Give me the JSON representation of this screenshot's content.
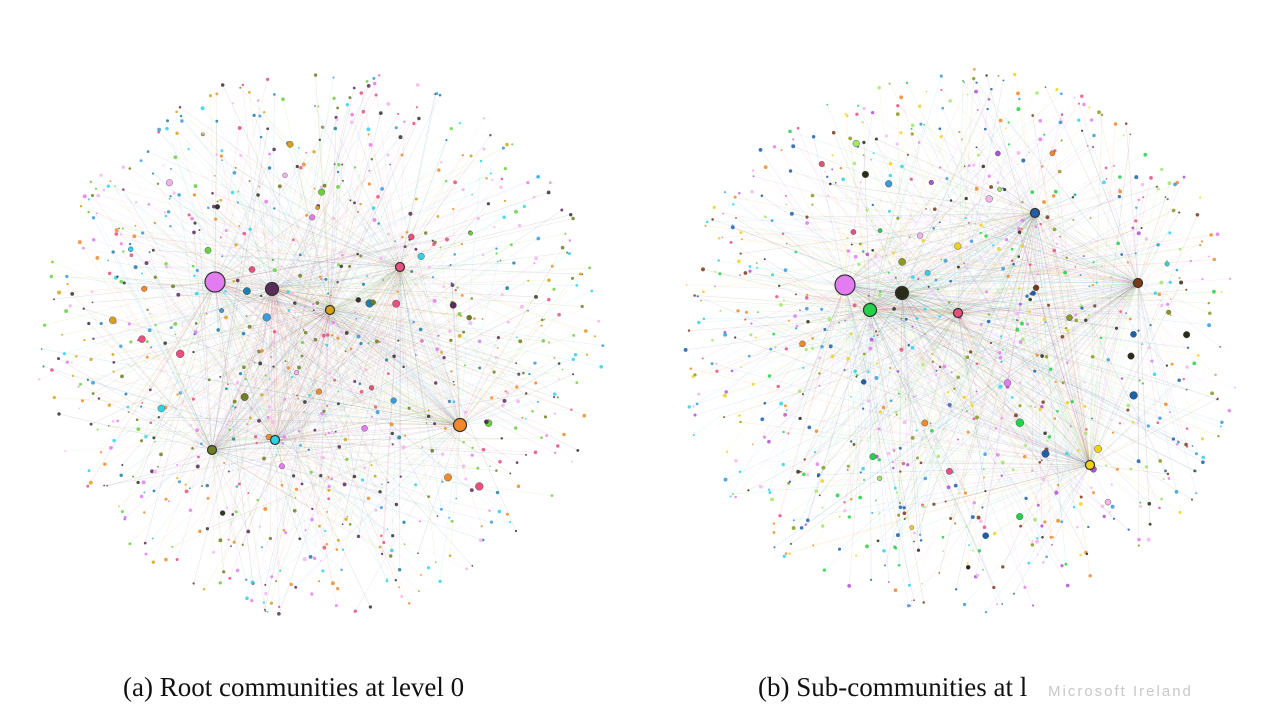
{
  "panels": [
    {
      "id": "a",
      "caption": "(a) Root communities at level 0",
      "seed": 11,
      "palette": [
        "#e27cf0",
        "#2fd3e6",
        "#6ad13c",
        "#f08a2a",
        "#5b2d5a",
        "#d6a21a",
        "#6d7f22",
        "#e94f7f",
        "#3a9bd8",
        "#333333",
        "#1f7fa8",
        "#f3b4ee"
      ],
      "hubs": [
        {
          "color": "#e27cf0",
          "size": "large"
        },
        {
          "color": "#f08a2a",
          "size": "medium"
        },
        {
          "color": "#5b2d5a",
          "size": "medium"
        },
        {
          "color": "#d6a21a",
          "size": "small"
        },
        {
          "color": "#2fd3e6",
          "size": "small"
        },
        {
          "color": "#6d7f22",
          "size": "small"
        },
        {
          "color": "#e94f7f",
          "size": "small"
        }
      ]
    },
    {
      "id": "b",
      "caption": "(b) Sub-communities at l",
      "seed": 29,
      "palette": [
        "#e27cf0",
        "#23d14a",
        "#2b2b1a",
        "#1f5fa8",
        "#f2d11a",
        "#e94f7f",
        "#2fd3e6",
        "#7a3a1a",
        "#f08a2a",
        "#8a9a22",
        "#3a9bd8",
        "#b04fd8",
        "#a3e66a",
        "#f3b4ee"
      ],
      "hubs": [
        {
          "color": "#e27cf0",
          "size": "large"
        },
        {
          "color": "#23d14a",
          "size": "medium"
        },
        {
          "color": "#2b2b1a",
          "size": "medium"
        },
        {
          "color": "#1f5fa8",
          "size": "small"
        },
        {
          "color": "#f2d11a",
          "size": "small"
        },
        {
          "color": "#7a3a1a",
          "size": "small"
        },
        {
          "color": "#e94f7f",
          "size": "small"
        }
      ]
    }
  ],
  "watermark": "Microsoft Ireland"
}
